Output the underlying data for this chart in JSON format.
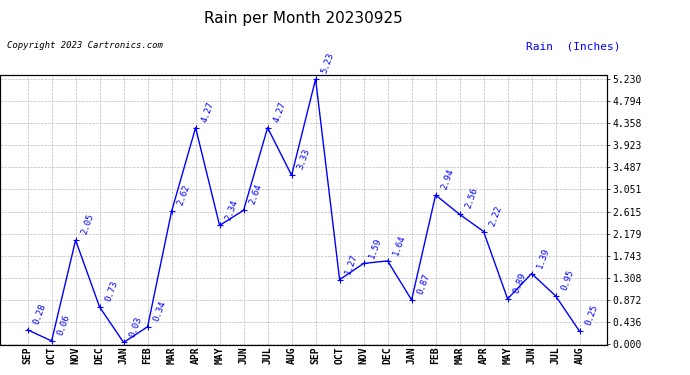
{
  "title": "Rain per Month 20230925",
  "copyright_text": "Copyright 2023 Cartronics.com",
  "legend_text": "Rain  (Inches)",
  "months": [
    "SEP",
    "OCT",
    "NOV",
    "DEC",
    "JAN",
    "FEB",
    "MAR",
    "APR",
    "MAY",
    "JUN",
    "JUL",
    "AUG",
    "SEP",
    "OCT",
    "NOV",
    "DEC",
    "JAN",
    "FEB",
    "MAR",
    "APR",
    "MAY",
    "JUN",
    "JUL",
    "AUG"
  ],
  "values": [
    0.28,
    0.06,
    2.05,
    0.73,
    0.03,
    0.34,
    2.62,
    4.27,
    2.34,
    2.64,
    4.27,
    3.33,
    5.23,
    1.27,
    1.59,
    1.64,
    0.87,
    2.94,
    2.56,
    2.22,
    0.89,
    1.39,
    0.95,
    0.25
  ],
  "line_color": "blue",
  "marker_color": "blue",
  "label_color": "blue",
  "title_color": "black",
  "bg_color": "white",
  "grid_color": "#bbbbbb",
  "yticks": [
    0.0,
    0.436,
    0.872,
    1.308,
    1.743,
    2.179,
    2.615,
    3.051,
    3.487,
    3.923,
    4.358,
    4.794,
    5.23
  ],
  "ymax": 5.23,
  "ymin": 0.0,
  "title_fontsize": 11,
  "label_fontsize": 6.5,
  "tick_fontsize": 7,
  "copyright_fontsize": 6.5,
  "legend_fontsize": 8
}
